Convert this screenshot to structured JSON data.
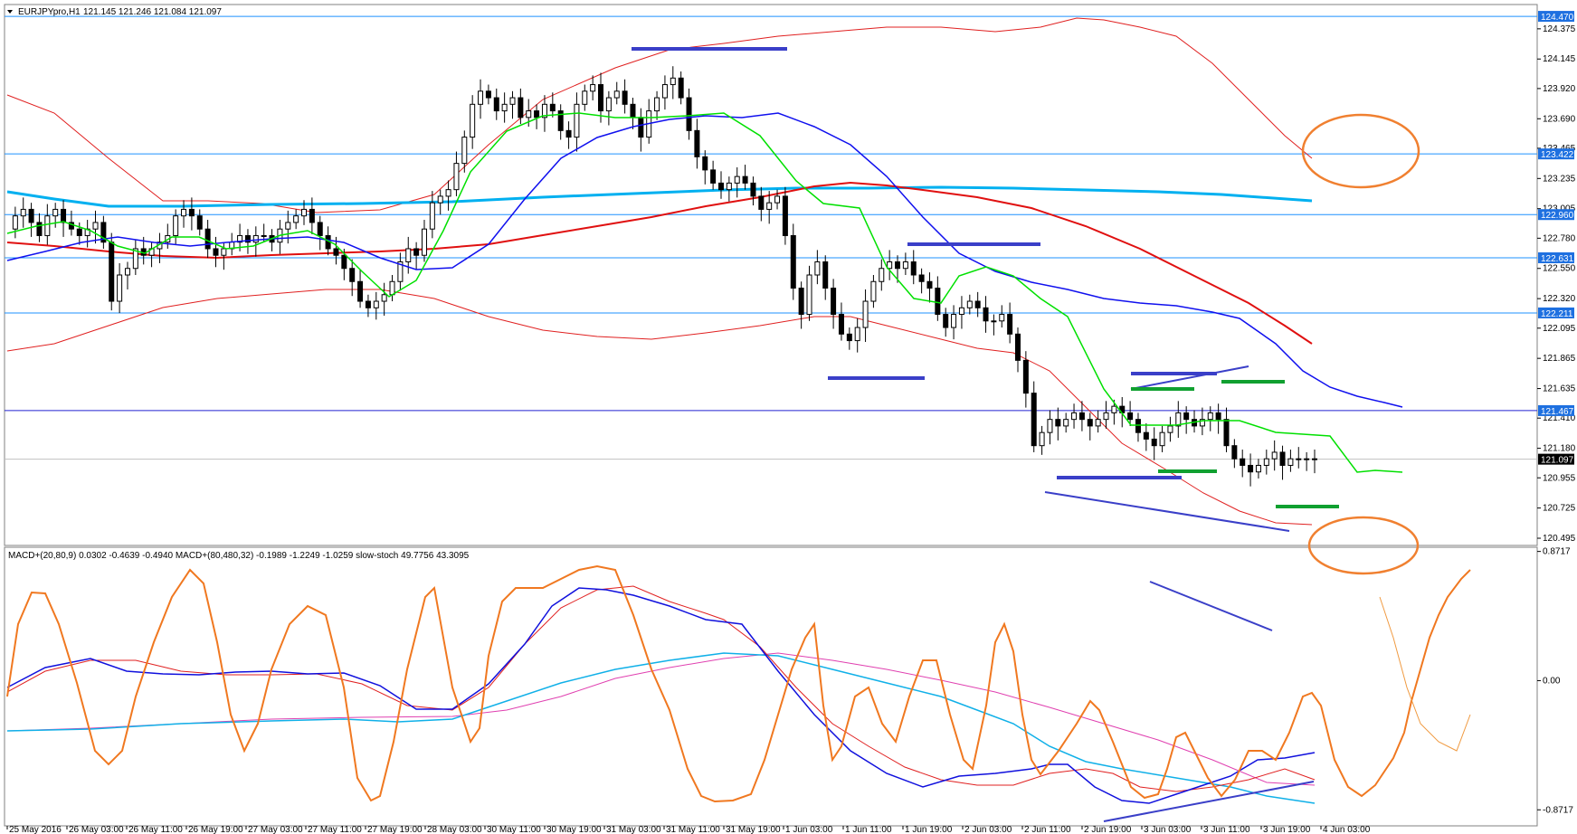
{
  "header": {
    "symbol": "EURJPYpro,H1",
    "ohlc": "121.145 121.246 121.084 121.097"
  },
  "indicators_label": "MACD+(20,80,9) 0.0302 -0.4639 -0.4940   MACD+(80,480,32) -0.1989 -1.2249 -1.0259   slow-stoch 49.7756 43.3095",
  "colors": {
    "candle_bull": "#ffffff",
    "candle_bear": "#000000",
    "ma_fast": "#00e000",
    "ma_mid": "#1010ee",
    "ma_slow": "#e01010",
    "ma_long": "#00b0f0",
    "bands": "#e02020",
    "hline": "#1e90ff",
    "annotation_blue": "#3a3fc8",
    "annotation_green": "#10a030",
    "ellipse": "#f08030",
    "stoch": "#f07820",
    "macd_fast": "#1010dd",
    "macd_signal": "#e02020",
    "macd_slow": "#10b0e8",
    "macd_slow_signal": "#e040b0"
  },
  "chart_data": {
    "type": "line",
    "price_axis": {
      "ticks": [
        "124.375",
        "124.145",
        "123.920",
        "123.690",
        "123.465",
        "123.235",
        "123.005",
        "122.780",
        "122.550",
        "122.320",
        "122.095",
        "121.865",
        "121.635",
        "121.410",
        "121.180",
        "120.955",
        "120.725",
        "120.495"
      ],
      "ylim": [
        120.44,
        124.56
      ]
    },
    "price_tags": [
      {
        "label": "124.470",
        "value": 124.47
      },
      {
        "label": "123.422",
        "value": 123.422
      },
      {
        "label": "122.960",
        "value": 122.96
      },
      {
        "label": "122.631",
        "value": 122.631
      },
      {
        "label": "122.211",
        "value": 122.211
      },
      {
        "label": "121.467",
        "value": 121.467
      },
      {
        "label": "121.097",
        "value": 121.097
      }
    ],
    "indicator_axis": {
      "ticks": [
        "0.8717",
        "0.00",
        "-0.8717"
      ],
      "ylim": [
        -0.98,
        0.9
      ]
    },
    "time_axis": {
      "labels": [
        "25 May 2016",
        "26 May 03:00",
        "26 May 11:00",
        "26 May 19:00",
        "27 May 03:00",
        "27 May 11:00",
        "27 May 19:00",
        "28 May 03:00",
        "30 May 11:00",
        "30 May 19:00",
        "31 May 03:00",
        "31 May 11:00",
        "31 May 19:00",
        "1 Jun 03:00",
        "1 Jun 11:00",
        "1 Jun 19:00",
        "2 Jun 03:00",
        "2 Jun 11:00",
        "2 Jun 19:00",
        "3 Jun 03:00",
        "3 Jun 11:00",
        "3 Jun 19:00",
        "4 Jun 03:00"
      ],
      "bars_per_label": 8,
      "total_bars": 178
    },
    "series": [
      {
        "key": "close",
        "values": [
          122.85,
          122.95,
          123.0,
          122.9,
          122.8,
          122.95,
          123.0,
          122.9,
          122.85,
          122.8,
          122.85,
          122.9,
          122.75,
          122.3,
          122.5,
          122.55,
          122.7,
          122.65,
          122.7,
          122.75,
          122.8,
          122.95,
          123.0,
          122.95,
          122.85,
          122.7,
          122.65,
          122.7,
          122.75,
          122.8,
          122.75,
          122.8,
          122.8,
          122.75,
          122.85,
          122.9,
          122.95,
          123.0,
          122.9,
          122.8,
          122.7,
          122.65,
          122.55,
          122.45,
          122.3,
          122.25,
          122.3,
          122.35,
          122.45,
          122.6,
          122.7,
          122.65,
          122.85,
          123.05,
          123.1,
          123.15,
          123.35,
          123.55,
          123.8,
          123.9,
          123.85,
          123.75,
          123.8,
          123.85,
          123.7,
          123.75,
          123.7,
          123.8,
          123.75,
          123.6,
          123.55,
          123.8,
          123.9,
          123.95,
          123.75,
          123.85,
          123.9,
          123.8,
          123.7,
          123.55,
          123.75,
          123.85,
          123.95,
          124.0,
          123.85,
          123.6,
          123.4,
          123.3,
          123.2,
          123.15,
          123.2,
          123.25,
          123.2,
          123.1,
          123.0,
          123.05,
          123.1,
          122.8,
          122.4,
          122.2,
          122.5,
          122.6,
          122.4,
          122.2,
          122.05,
          122.0,
          122.1,
          122.3,
          122.45,
          122.55,
          122.6,
          122.55,
          122.6,
          122.5,
          122.45,
          122.4,
          122.2,
          122.1,
          122.2,
          122.25,
          122.3,
          122.25,
          122.15,
          122.15,
          122.2,
          122.05,
          121.85,
          121.6,
          121.2,
          121.3,
          121.4,
          121.35,
          121.4,
          121.45,
          121.4,
          121.35,
          121.4,
          121.45,
          121.5,
          121.45,
          121.4,
          121.3,
          121.25,
          121.2,
          121.3,
          121.35,
          121.45,
          121.4,
          121.35,
          121.4,
          121.45,
          121.4,
          121.2,
          121.1,
          121.05,
          121.0,
          121.05,
          121.1,
          121.15,
          121.05,
          121.1,
          121.097,
          121.1,
          121.1,
          121.1,
          121.1,
          121.1,
          121.1,
          121.1,
          121.1,
          121.1,
          121.1,
          121.1,
          121.1,
          121.1,
          121.1,
          121.1,
          121.1
        ]
      }
    ]
  }
}
